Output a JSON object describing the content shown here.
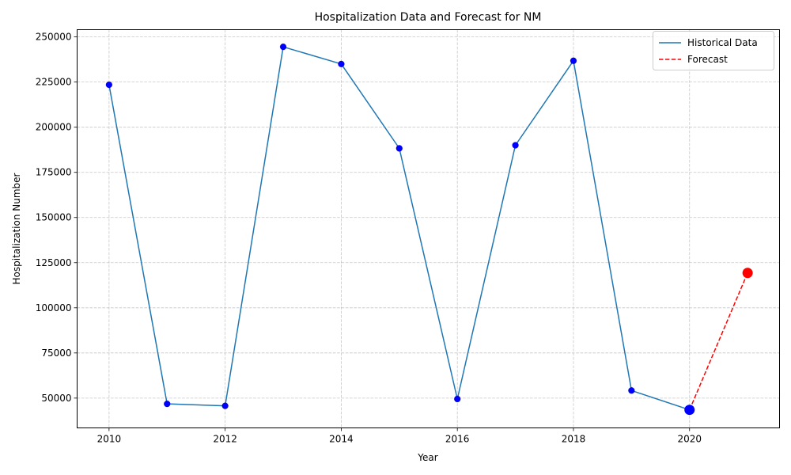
{
  "chart_data": {
    "type": "line",
    "title": "Hospitalization Data and Forecast for NM",
    "xlabel": "Year",
    "ylabel": "Hospitalization Number",
    "xlim": [
      2009.45,
      2021.55
    ],
    "ylim": [
      33500,
      254000
    ],
    "x_ticks": [
      2010,
      2012,
      2014,
      2016,
      2018,
      2020
    ],
    "y_ticks": [
      50000,
      75000,
      100000,
      125000,
      150000,
      175000,
      200000,
      225000,
      250000
    ],
    "grid": true,
    "legend_position": "top-right",
    "series": [
      {
        "name": "Historical Data",
        "color": "#1f77b4",
        "marker_color": "#0000ff",
        "line_style": "solid",
        "points": [
          {
            "x": 2010,
            "y": 223500
          },
          {
            "x": 2011,
            "y": 46800
          },
          {
            "x": 2012,
            "y": 45700
          },
          {
            "x": 2013,
            "y": 244500
          },
          {
            "x": 2014,
            "y": 235000
          },
          {
            "x": 2015,
            "y": 188300
          },
          {
            "x": 2016,
            "y": 49500
          },
          {
            "x": 2017,
            "y": 190000
          },
          {
            "x": 2018,
            "y": 236800
          },
          {
            "x": 2019,
            "y": 54200
          },
          {
            "x": 2020,
            "y": 43500
          }
        ]
      },
      {
        "name": "Forecast",
        "color": "#ff0000",
        "marker_color": "#ff0000",
        "line_style": "dashed",
        "points": [
          {
            "x": 2020,
            "y": 43500
          },
          {
            "x": 2021,
            "y": 119300
          }
        ]
      }
    ],
    "highlight_points": [
      {
        "x": 2020,
        "y": 43500,
        "color": "#0000ff"
      },
      {
        "x": 2021,
        "y": 119300,
        "color": "#ff0000"
      }
    ]
  }
}
